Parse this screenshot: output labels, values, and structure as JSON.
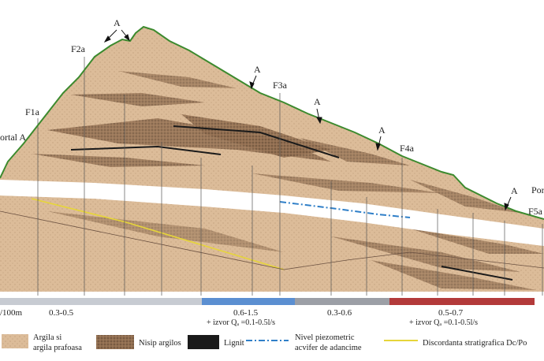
{
  "section_labels": {
    "portal_left": "ortal A",
    "portal_right": "Por",
    "f1a": "F1a",
    "f2a": "F2a",
    "f3a": "F3a",
    "f4a": "F4a",
    "f5a": "F5a",
    "a": "A"
  },
  "permeability_bar": {
    "unit": "/100m",
    "segments": [
      {
        "value": "0.3-0.5",
        "color": "#c7cbd2"
      },
      {
        "value": "0.6-1.5",
        "color": "#5b8fd1",
        "note": "+ izvor Qₐ =0.1-0.5l/s"
      },
      {
        "value": "0.3-0.6",
        "color": "#9c9fa6"
      },
      {
        "value": "0.5-0.7",
        "color": "#b33a3a",
        "note": "+ izvor Qₐ =0.1-0.5l/s"
      }
    ]
  },
  "legend": {
    "clay": "Argila si argila prafoasa",
    "clay_line1": "Argila si",
    "clay_line2": "argila prafoasa",
    "sand": "Nisip argilos",
    "lignite": "Lignit",
    "piezo_line1": "Nivel piezometric",
    "piezo_line2": "acvifer de adancime",
    "discordance": "Discordanta stratigrafica Dc/Po"
  },
  "colors": {
    "clay": "#d9b895",
    "sand": "#8a6a4e",
    "lignite": "#1a1a1a",
    "piezo": "#2f7fc8",
    "discordance": "#e6d53a",
    "surface": "#3c8a2e"
  }
}
